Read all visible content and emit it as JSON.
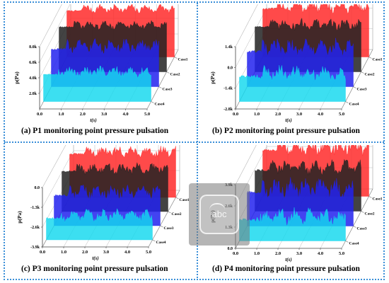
{
  "figure": {
    "watermark_text": "abc"
  },
  "chart_data": [
    {
      "type": "area",
      "panel": "a",
      "caption": "(a) P1 monitoring point pressure pulsation",
      "xlabel": "t(s)",
      "ylabel": "p(Pa)",
      "x_ticks": [
        "0.0",
        "1.0",
        "2.0",
        "3.0",
        "4.0",
        "5.0"
      ],
      "xlim": [
        0,
        5
      ],
      "y_ticks": [
        "2.0k",
        "4.0k",
        "6.0k",
        "8.0k"
      ],
      "y_tick_values": [
        2000,
        4000,
        6000,
        8000
      ],
      "ylim": [
        0,
        8000
      ],
      "series": [
        {
          "name": "Case1",
          "color": "#ff2a2a",
          "base": 6200,
          "amp": 900,
          "noise": 500
        },
        {
          "name": "Case2",
          "color": "#222222",
          "base": 6000,
          "amp": 800,
          "noise": 500
        },
        {
          "name": "Case3",
          "color": "#2222ee",
          "base": 5200,
          "amp": 1200,
          "noise": 900
        },
        {
          "name": "Case4",
          "color": "#11d8ee",
          "base": 3800,
          "amp": 900,
          "noise": 700
        }
      ]
    },
    {
      "type": "area",
      "panel": "b",
      "caption": "(b) P2 monitoring point pressure pulsation",
      "xlabel": "t(s)",
      "ylabel": "p(Pa)",
      "x_ticks": [
        "0.0",
        "1.0",
        "2.0",
        "3.0",
        "4.0",
        "5.0"
      ],
      "xlim": [
        0,
        5
      ],
      "y_ticks": [
        "-2.8k",
        "-1.4k",
        "0.0",
        "1.4k"
      ],
      "y_tick_values": [
        -2800,
        -1400,
        0,
        1400
      ],
      "ylim": [
        -2800,
        1400
      ],
      "series": [
        {
          "name": "Case1",
          "color": "#ff2a2a",
          "base": 600,
          "amp": 500,
          "noise": 450
        },
        {
          "name": "Case2",
          "color": "#222222",
          "base": 400,
          "amp": 500,
          "noise": 400
        },
        {
          "name": "Case3",
          "color": "#2222ee",
          "base": -200,
          "amp": 800,
          "noise": 600
        },
        {
          "name": "Case4",
          "color": "#11d8ee",
          "base": -900,
          "amp": 700,
          "noise": 500
        }
      ]
    },
    {
      "type": "area",
      "panel": "c",
      "caption": "(c) P3 monitoring point pressure pulsation",
      "xlabel": "t(s)",
      "ylabel": "p(Pa)",
      "x_ticks": [
        "0.0",
        "1.0",
        "2.0",
        "3.0",
        "4.0",
        "5.0"
      ],
      "xlim": [
        0,
        5
      ],
      "y_ticks": [
        "-3.9k",
        "-2.6k",
        "-1.3k",
        "0.0"
      ],
      "y_tick_values": [
        -3900,
        -2600,
        -1300,
        0
      ],
      "ylim": [
        -3900,
        0
      ],
      "series": [
        {
          "name": "Case1",
          "color": "#ff2a2a",
          "base": -900,
          "amp": 500,
          "noise": 350
        },
        {
          "name": "Case2",
          "color": "#222222",
          "base": -1100,
          "amp": 500,
          "noise": 350
        },
        {
          "name": "Case3",
          "color": "#2222ee",
          "base": -1700,
          "amp": 700,
          "noise": 500
        },
        {
          "name": "Case4",
          "color": "#11d8ee",
          "base": -2300,
          "amp": 600,
          "noise": 400
        }
      ]
    },
    {
      "type": "area",
      "panel": "d",
      "caption": "(d) P4 monitoring point pressure pulsation",
      "xlabel": "t(s)",
      "ylabel": "p(Pa)",
      "x_ticks": [
        "0.0",
        "1.0",
        "2.0",
        "3.0",
        "4.0",
        "5.0"
      ],
      "xlim": [
        0,
        5
      ],
      "y_ticks": [
        "0.0",
        "1.3k",
        "2.6k",
        "3.9k"
      ],
      "y_tick_values": [
        0,
        1300,
        2600,
        3900
      ],
      "ylim": [
        0,
        3900
      ],
      "series": [
        {
          "name": "Case1",
          "color": "#ff2a2a",
          "base": 3000,
          "amp": 600,
          "noise": 450
        },
        {
          "name": "Case2",
          "color": "#222222",
          "base": 2700,
          "amp": 600,
          "noise": 450
        },
        {
          "name": "Case3",
          "color": "#2222ee",
          "base": 2300,
          "amp": 800,
          "noise": 600
        },
        {
          "name": "Case4",
          "color": "#11d8ee",
          "base": 1500,
          "amp": 700,
          "noise": 500
        }
      ]
    }
  ]
}
